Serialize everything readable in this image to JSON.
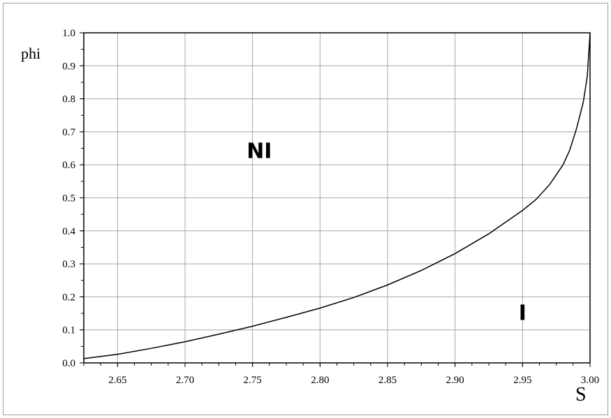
{
  "chart_data": {
    "type": "line",
    "xlabel": "S",
    "ylabel": "phi",
    "xlim": [
      2.625,
      3.0
    ],
    "ylim": [
      0.0,
      1.0
    ],
    "x_ticks": [
      "2.65",
      "2.70",
      "2.75",
      "2.80",
      "2.85",
      "2.90",
      "2.95",
      "3.00"
    ],
    "y_ticks": [
      "0.0",
      "0.1",
      "0.2",
      "0.3",
      "0.4",
      "0.5",
      "0.6",
      "0.7",
      "0.8",
      "0.9",
      "1.0"
    ],
    "grid": true,
    "series": [
      {
        "x": [
          2.625,
          2.65,
          2.675,
          2.7,
          2.725,
          2.75,
          2.775,
          2.8,
          2.825,
          2.85,
          2.875,
          2.9,
          2.925,
          2.95,
          2.96,
          2.97,
          2.98,
          2.985,
          2.99,
          2.995,
          2.998,
          3.0
        ],
        "y": [
          0.013,
          0.026,
          0.044,
          0.064,
          0.087,
          0.111,
          0.138,
          0.166,
          0.198,
          0.236,
          0.28,
          0.331,
          0.391,
          0.462,
          0.495,
          0.54,
          0.6,
          0.645,
          0.71,
          0.79,
          0.87,
          1.0
        ]
      }
    ],
    "annotations": [
      {
        "text": "NI",
        "x": 2.755,
        "y": 0.62
      },
      {
        "text": "I",
        "x": 2.95,
        "y": 0.13
      }
    ]
  }
}
